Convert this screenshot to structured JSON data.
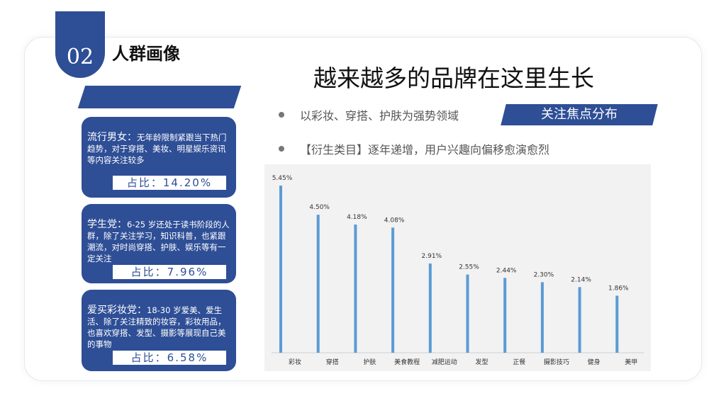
{
  "section": {
    "number": "02",
    "title": "人群画像"
  },
  "main_title": "越来越多的品牌在这里生长",
  "bullets": [
    "以彩妆、穿搭、护肤为强势领域",
    "【衍生类目】逐年递增，用户兴趣向偏移愈演愈烈"
  ],
  "tag": "关注焦点分布",
  "panels": [
    {
      "title": "流行男女：",
      "body": "无年龄限制紧跟当下热门趋势，对于穿搭、美妆、明星娱乐资讯等内容关注较多",
      "pct": "占比：14.20%"
    },
    {
      "title": "学生党：",
      "body": "6-25 岁还处于读书阶段的人群，除了关注学习，知识科普，也紧跟潮流，对时尚穿搭、护肤、娱乐等有一定关注",
      "pct": "占比：7.96%"
    },
    {
      "title": "爱买彩妆党：",
      "body": "18-30 岁爱美、爱生活、除了关注精致的妆容，彩妆用品，也喜欢穿搭、发型、摄影等展现自己美的事物",
      "pct": "占比：6.58%"
    }
  ],
  "colors": {
    "primary": "#2e4e96",
    "bar": "#5b9bd5"
  },
  "chart_data": {
    "type": "bar",
    "categories": [
      "彩妆",
      "穿搭",
      "护肤",
      "美食教程",
      "减肥运动",
      "发型",
      "正餐",
      "摄影技巧",
      "健身",
      "美甲"
    ],
    "values": [
      5.45,
      4.5,
      4.18,
      4.08,
      2.91,
      2.55,
      2.44,
      2.3,
      2.14,
      1.86
    ],
    "value_labels": [
      "5.45%",
      "4.50%",
      "4.18%",
      "4.08%",
      "2.91%",
      "2.55%",
      "2.44%",
      "2.30%",
      "2.14%",
      "1.86%"
    ],
    "title": "",
    "xlabel": "",
    "ylabel": "",
    "ylim": [
      0,
      5.45
    ],
    "grid": false,
    "legend": "none"
  }
}
